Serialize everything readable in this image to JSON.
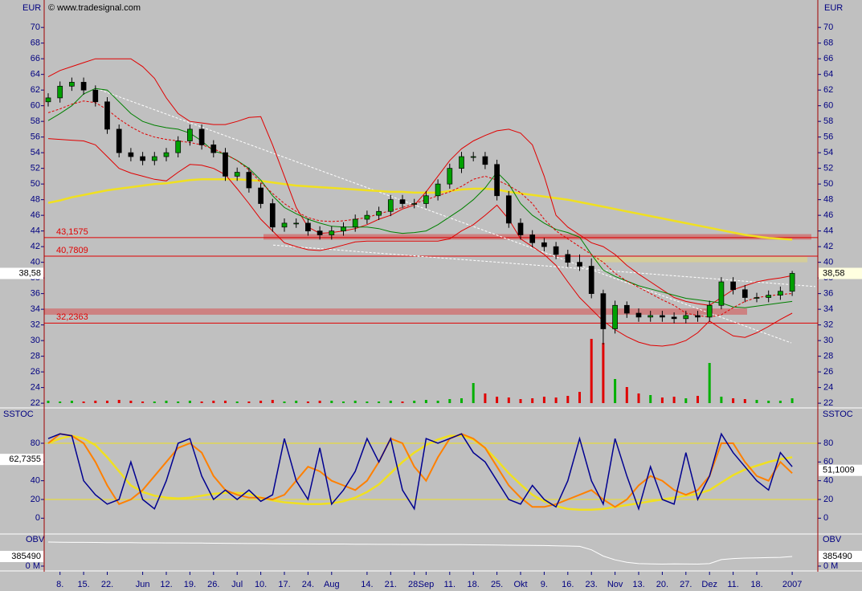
{
  "chart_data": [
    {
      "type": "candlestick",
      "watermark": "© www.tradesignal.com",
      "axis_label": "EUR",
      "categories": [
        null,
        "8.",
        null,
        "15.",
        null,
        "22.",
        null,
        null,
        "Jun",
        null,
        "12.",
        null,
        "19.",
        null,
        "26.",
        null,
        "Jul",
        null,
        "10.",
        null,
        "17.",
        null,
        "24.",
        null,
        "Aug",
        null,
        null,
        "14.",
        null,
        "21.",
        null,
        "28.",
        "Sep",
        null,
        "11.",
        null,
        "18.",
        null,
        "25.",
        null,
        "Okt",
        null,
        "9.",
        null,
        "16.",
        null,
        "23.",
        null,
        "Nov",
        null,
        "13.",
        null,
        "20.",
        null,
        "27.",
        null,
        "Dez",
        null,
        "11.",
        null,
        "18.",
        null,
        null,
        "2007"
      ],
      "open": [
        60.5,
        61,
        62.5,
        63,
        62,
        60.5,
        57,
        54,
        53.5,
        53,
        53.5,
        54,
        55.5,
        57,
        55,
        54,
        51,
        51.5,
        49.5,
        47.5,
        44.5,
        45,
        45,
        44,
        43.5,
        44,
        44.5,
        45.5,
        46,
        46.5,
        48,
        47.5,
        47.5,
        48.5,
        50,
        52,
        53.5,
        53.5,
        52.5,
        48.5,
        45,
        43.5,
        42.5,
        42,
        41,
        40,
        39.5,
        36,
        31.5,
        34.5,
        33.5,
        33,
        33.2,
        33,
        32.8,
        33.2,
        33,
        34.5,
        37.5,
        36.5,
        35.5,
        35.5,
        35.8,
        36.3
      ],
      "high": [
        61.6,
        63.1,
        63.6,
        63.6,
        62.6,
        61.1,
        57.6,
        54.6,
        54.1,
        54.1,
        54.6,
        56.1,
        57.6,
        57.6,
        55.6,
        54.6,
        52.1,
        52.1,
        50.1,
        48.1,
        45.6,
        45.6,
        45.6,
        44.6,
        44.6,
        45.1,
        46.1,
        46.6,
        47.1,
        48.6,
        48.6,
        48.1,
        49.1,
        50.6,
        52.6,
        54.1,
        54.1,
        54.1,
        53.1,
        49.1,
        45.6,
        44.1,
        43.1,
        42.6,
        41.6,
        41,
        40.5,
        36.5,
        35.1,
        35,
        34.1,
        33.8,
        33.8,
        33.6,
        33.8,
        33.8,
        35.1,
        38.1,
        38.1,
        37.1,
        36.1,
        36.4,
        36.9,
        38.9
      ],
      "low": [
        59.9,
        60.4,
        61.9,
        61.4,
        59.9,
        56.4,
        53.4,
        52.9,
        52.4,
        52.4,
        52.9,
        53.4,
        54.9,
        54.4,
        53.4,
        50.4,
        50.4,
        48.9,
        46.9,
        43.9,
        43.9,
        44.4,
        43.4,
        42.9,
        42.9,
        43.4,
        43.9,
        44.9,
        45.4,
        45.9,
        46.9,
        46.9,
        46.9,
        47.9,
        49.4,
        51.4,
        52.9,
        51.9,
        47.9,
        44.4,
        42.9,
        41.9,
        41.4,
        40.4,
        39.4,
        38.9,
        35.4,
        29.5,
        30.9,
        32.9,
        32.4,
        32.4,
        32.4,
        32.2,
        32.2,
        32.4,
        32.4,
        34,
        35.9,
        34.9,
        34.9,
        34.9,
        35.2,
        35.7
      ],
      "close": [
        61,
        62.5,
        63,
        62,
        60.5,
        57,
        54,
        53.5,
        53,
        53.5,
        54,
        55.5,
        57,
        55,
        54,
        51,
        51.5,
        49.5,
        47.5,
        44.5,
        45,
        45,
        44,
        43.5,
        44,
        44.5,
        45.5,
        46,
        46.5,
        48,
        47.5,
        47.5,
        48.5,
        50,
        52,
        53.5,
        53.5,
        52.5,
        48.5,
        45,
        43.5,
        42.5,
        42,
        41,
        40,
        39.5,
        36,
        31.5,
        34.5,
        33.5,
        33,
        33.2,
        33,
        32.8,
        33.2,
        33,
        34.5,
        37.5,
        36.5,
        35.5,
        35.5,
        35.8,
        36.3,
        38.58
      ],
      "up_color": "#00a000",
      "down_color": "#000000",
      "ylim": [
        21.5,
        73.3
      ],
      "yticks": [
        22,
        24,
        26,
        28,
        30,
        32,
        34,
        36,
        38,
        40,
        42,
        44,
        46,
        48,
        50,
        52,
        54,
        56,
        58,
        60,
        62,
        64,
        66,
        68,
        70
      ],
      "volume": {
        "values": [
          3,
          2,
          3,
          2,
          3,
          3,
          4,
          3,
          2,
          2,
          3,
          2,
          3,
          2,
          3,
          3,
          2,
          2,
          3,
          4,
          2,
          3,
          2,
          3,
          3,
          2,
          3,
          2,
          2,
          3,
          2,
          3,
          4,
          3,
          5,
          6,
          25,
          12,
          8,
          7,
          5,
          6,
          8,
          7,
          9,
          14,
          80,
          75,
          30,
          20,
          12,
          10,
          7,
          8,
          6,
          9,
          50,
          8,
          6,
          5,
          4,
          3,
          3,
          6
        ],
        "vlim": [
          0,
          100
        ],
        "up_color": "#00b000",
        "down_color": "#e00000"
      },
      "series": [
        {
          "color": "#f0e020",
          "width": 2.5,
          "values": [
            47.6,
            47.9,
            48.3,
            48.6,
            48.9,
            49.2,
            49.4,
            49.6,
            49.8,
            50,
            50.1,
            50.3,
            50.5,
            50.6,
            50.6,
            50.6,
            50.6,
            50.5,
            50.4,
            50.2,
            50,
            49.8,
            49.7,
            49.6,
            49.5,
            49.4,
            49.3,
            49.2,
            49.1,
            49,
            49,
            48.9,
            48.9,
            48.9,
            49.1,
            49.3,
            49.4,
            49.4,
            49.3,
            49,
            48.8,
            48.6,
            48.4,
            48.2,
            48,
            47.7,
            47.4,
            47.1,
            46.8,
            46.5,
            46.2,
            45.9,
            45.6,
            45.3,
            45,
            44.7,
            44.4,
            44.1,
            43.8,
            43.5,
            43.3,
            43.1,
            43,
            42.9
          ]
        },
        {
          "color": "#e00000",
          "width": 1,
          "values": [
            63.7,
            64.5,
            65,
            65.5,
            66,
            66,
            66,
            66,
            65,
            63.5,
            61,
            59,
            58,
            57.8,
            57.6,
            57.6,
            58,
            58.5,
            58.6,
            55,
            51,
            47,
            44.5,
            43.7,
            43.8,
            44,
            44.3,
            44.8,
            45.5,
            46,
            46.8,
            47.3,
            49,
            51,
            53,
            54.5,
            55.5,
            56.2,
            56.8,
            57,
            56.5,
            55,
            51,
            46,
            44.5,
            43.5,
            42.5,
            42,
            41,
            39.6,
            38.5,
            37.5,
            36.5,
            35.5,
            35,
            34.7,
            34.5,
            35.5,
            36.5,
            37,
            37.5,
            37.8,
            38,
            38.3
          ]
        },
        {
          "color": "#e00000",
          "width": 1,
          "values": [
            55.8,
            55.7,
            55.6,
            55.5,
            55,
            53.5,
            52,
            51.4,
            51,
            50.6,
            50.4,
            51.5,
            52.5,
            52.4,
            52,
            51.2,
            49.4,
            47.5,
            45.5,
            44,
            42.5,
            42,
            41.6,
            41.5,
            41.8,
            42.2,
            42.6,
            42.7,
            42.7,
            42.7,
            42.7,
            42.7,
            42.7,
            42.7,
            43,
            44,
            44.8,
            46,
            47.3,
            45.5,
            43,
            42,
            41,
            39.6,
            37.5,
            35.5,
            34,
            32.5,
            31.4,
            30.5,
            29.8,
            29.4,
            29.3,
            29.5,
            30,
            31,
            32.5,
            31.5,
            30.6,
            30.4,
            31,
            31.8,
            32.7,
            33.5
          ]
        },
        {
          "color": "#008000",
          "width": 1,
          "values": [
            58.1,
            59,
            60,
            61.5,
            62.2,
            62,
            60.5,
            59,
            58,
            57.5,
            57.2,
            57,
            56.5,
            55.5,
            54.2,
            53.8,
            53,
            52,
            50.5,
            48.5,
            47,
            46.2,
            45.5,
            45,
            44.6,
            44.5,
            44.5,
            44.5,
            44.3,
            43.9,
            43.7,
            43.8,
            44,
            44.8,
            45.8,
            46.8,
            48,
            49.5,
            51.5,
            50,
            47.5,
            46,
            45,
            44.2,
            43.8,
            43.2,
            41,
            39,
            38.2,
            37.6,
            37,
            36.6,
            36.2,
            35.8,
            35.4,
            35.2,
            35,
            34.8,
            34.3,
            34.2,
            34.4,
            34.6,
            34.8,
            35
          ]
        },
        {
          "color": "#e00000",
          "width": 1,
          "dash": true,
          "values": [
            59.1,
            59.6,
            60.2,
            60.6,
            60.4,
            59.5,
            58.3,
            57.3,
            56.5,
            56,
            55.7,
            55.5,
            55.3,
            55,
            54.5,
            53.8,
            53,
            51.8,
            50.2,
            48.8,
            47.5,
            46.5,
            45.7,
            45.3,
            45.2,
            45.3,
            45.5,
            45.7,
            46.2,
            46.6,
            47,
            47.5,
            48,
            48.5,
            49,
            49.7,
            50.6,
            51,
            50.5,
            49.8,
            48.9,
            47.5,
            45.5,
            44,
            43,
            42,
            41,
            40,
            38.6,
            37.6,
            36.8,
            36,
            35.2,
            34.5,
            33.5,
            33.2,
            33,
            33.3,
            34.2,
            35,
            35.5,
            35.7,
            35.9,
            36
          ]
        }
      ],
      "levels": [
        {
          "value": 43.1575,
          "label": "43,1575"
        },
        {
          "value": 40.7809,
          "label": "40,7809"
        },
        {
          "value": 32.2363,
          "label": "32,2363"
        }
      ],
      "level_color": "#e00000",
      "zones": [
        {
          "lo": 42.9,
          "hi": 43.6,
          "color": "#d07070"
        },
        {
          "lo": 40,
          "hi": 40.7,
          "color": "#d8d090"
        },
        {
          "lo": 33.3,
          "hi": 34.1,
          "color": "#d07070"
        }
      ],
      "trendlines": [
        {
          "from": 62.2,
          "to": 29.7
        },
        {
          "from": 42.2,
          "to": 36.9
        }
      ],
      "last": {
        "value": 38.58,
        "label": "38,58"
      }
    },
    {
      "type": "line",
      "axis_label": "SSTOC",
      "ylim": [
        -16,
        116
      ],
      "yticks": [
        0,
        20,
        40,
        60,
        80
      ],
      "levels": [
        80,
        20
      ],
      "level_color": "#f0e020",
      "series": [
        {
          "color": "#f0e020",
          "width": 2.5,
          "values": [
            80,
            85,
            88,
            85,
            78,
            65,
            50,
            35,
            28,
            24,
            22,
            21,
            22,
            24,
            26,
            27,
            27,
            26,
            22,
            19,
            17,
            16,
            15,
            15,
            16,
            18,
            22,
            28,
            36,
            48,
            60,
            70,
            78,
            84,
            88,
            88,
            84,
            75,
            62,
            48,
            36,
            25,
            18,
            13,
            10,
            9,
            9,
            10,
            12,
            14,
            16,
            18,
            20,
            22,
            24,
            26,
            30,
            38,
            46,
            52,
            56,
            60,
            63,
            65
          ]
        },
        {
          "color": "#ff8000",
          "width": 2,
          "values": [
            80,
            90,
            88,
            80,
            60,
            35,
            15,
            20,
            30,
            45,
            60,
            75,
            80,
            70,
            45,
            30,
            25,
            22,
            22,
            20,
            25,
            40,
            55,
            50,
            40,
            35,
            30,
            40,
            60,
            85,
            80,
            55,
            40,
            65,
            85,
            90,
            85,
            75,
            55,
            35,
            22,
            12,
            12,
            15,
            20,
            25,
            30,
            20,
            12,
            20,
            35,
            45,
            40,
            30,
            25,
            30,
            45,
            80,
            80,
            60,
            45,
            40,
            60,
            48
          ]
        },
        {
          "color": "#000090",
          "width": 1.5,
          "values": [
            85,
            90,
            88,
            40,
            25,
            15,
            20,
            60,
            20,
            10,
            40,
            80,
            85,
            45,
            20,
            30,
            20,
            30,
            18,
            25,
            85,
            40,
            20,
            75,
            15,
            30,
            50,
            85,
            60,
            85,
            30,
            10,
            85,
            80,
            85,
            90,
            70,
            60,
            40,
            20,
            15,
            35,
            20,
            12,
            40,
            85,
            40,
            15,
            85,
            45,
            10,
            55,
            20,
            15,
            70,
            20,
            45,
            90,
            70,
            55,
            40,
            30,
            70,
            55
          ]
        }
      ],
      "left_value": {
        "value": 62.7355,
        "label": "62,7355"
      },
      "right_value": {
        "value": 51.1009,
        "label": "51,1009"
      }
    },
    {
      "type": "line",
      "axis_label": "OBV",
      "ylim": [
        -160000,
        1250000
      ],
      "yticks": [
        {
          "value": 0,
          "label": "0 M"
        }
      ],
      "series": [
        {
          "color": "#ffffff",
          "width": 1,
          "values": [
            960000,
            955000,
            950000,
            950000,
            945000,
            940000,
            935000,
            935000,
            930000,
            930000,
            925000,
            925000,
            920000,
            920000,
            915000,
            910000,
            905000,
            900000,
            900000,
            895000,
            890000,
            890000,
            885000,
            880000,
            880000,
            880000,
            875000,
            875000,
            870000,
            870000,
            865000,
            865000,
            860000,
            860000,
            860000,
            855000,
            850000,
            845000,
            840000,
            835000,
            830000,
            825000,
            820000,
            810000,
            800000,
            790000,
            650000,
            400000,
            250000,
            150000,
            100000,
            90000,
            80000,
            90000,
            85000,
            80000,
            100000,
            260000,
            300000,
            320000,
            330000,
            340000,
            350000,
            385490
          ]
        }
      ],
      "last": {
        "value": 385490,
        "label": "385490"
      }
    }
  ]
}
